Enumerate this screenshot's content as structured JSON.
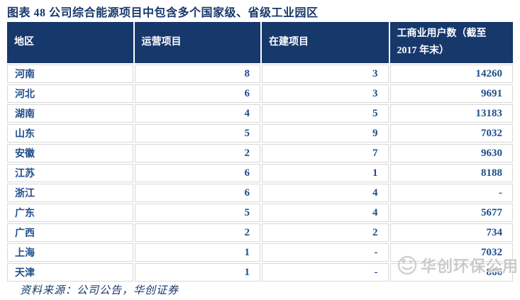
{
  "figure": {
    "title": "图表 48  公司综合能源项目中包含多个国家级、省级工业园区"
  },
  "table": {
    "headers": [
      "地区",
      "运营项目",
      "在建项目"
    ],
    "header_users_line1": "工商业用户数（截至",
    "header_users_line2": "2017 年末）",
    "rows": [
      [
        "河南",
        "8",
        "3",
        "14260"
      ],
      [
        "河北",
        "6",
        "3",
        "9691"
      ],
      [
        "湖南",
        "4",
        "5",
        "13183"
      ],
      [
        "山东",
        "5",
        "9",
        "7032"
      ],
      [
        "安徽",
        "2",
        "7",
        "9630"
      ],
      [
        "江苏",
        "6",
        "1",
        "8188"
      ],
      [
        "浙江",
        "6",
        "4",
        "-"
      ],
      [
        "广东",
        "5",
        "4",
        "5677"
      ],
      [
        "广西",
        "2",
        "2",
        "734"
      ],
      [
        "上海",
        "1",
        "-",
        "7032"
      ],
      [
        "天津",
        "1",
        "-",
        "866"
      ]
    ]
  },
  "footer": {
    "source": "资料来源：公司公告，华创证券"
  },
  "watermark": {
    "text": "华创环保公用"
  },
  "colors": {
    "header_bg": "#17386B",
    "text_blue": "#1F4E8C",
    "border_gray": "#D8D8D8",
    "watermark_gray": "#C5C5C5"
  }
}
